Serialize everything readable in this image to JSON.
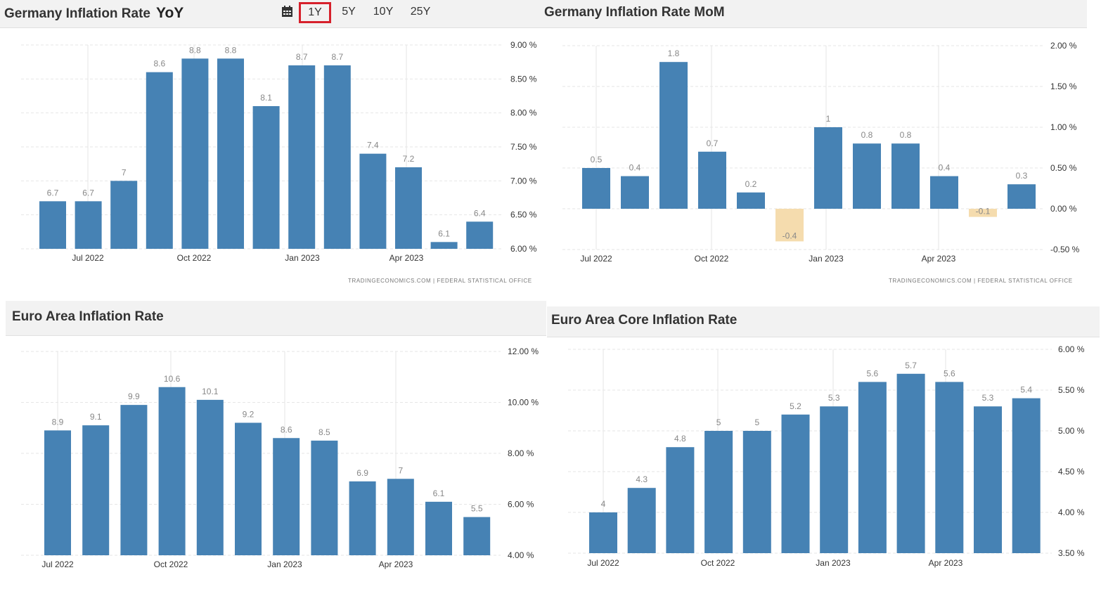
{
  "toolbar": {
    "ranges": [
      "1Y",
      "5Y",
      "10Y",
      "25Y"
    ],
    "active_range": "1Y",
    "calendar_icon": "calendar-icon"
  },
  "colors": {
    "positive": "#4682b4",
    "negative": "#f5dcae",
    "grid": "#e6e6e6"
  },
  "chart_data": [
    {
      "type": "bar",
      "title": "Germany Inflation Rate",
      "title_suffix": "YoY",
      "values": [
        6.7,
        6.7,
        7,
        8.6,
        8.8,
        8.8,
        8.1,
        8.7,
        8.7,
        7.4,
        7.2,
        6.1,
        6.4
      ],
      "value_labels": [
        "6.7",
        "6.7",
        "7",
        "8.6",
        "8.8",
        "8.8",
        "8.1",
        "8.7",
        "8.7",
        "7.4",
        "7.2",
        "6.1",
        "6.4"
      ],
      "x_ticks": [
        "Jul 2022",
        "Oct 2022",
        "Jan 2023",
        "Apr 2023"
      ],
      "ylim": [
        6.0,
        9.0
      ],
      "y_ticks": [
        "6.00 %",
        "6.50 %",
        "7.00 %",
        "7.50 %",
        "8.00 %",
        "8.50 %",
        "9.00 %"
      ],
      "source": "TRADINGECONOMICS.COM  |  FEDERAL  STATISTICAL  OFFICE"
    },
    {
      "type": "bar",
      "title": "Germany Inflation Rate MoM",
      "values": [
        0.5,
        0.4,
        1.8,
        0.7,
        0.2,
        -0.4,
        1,
        0.8,
        0.8,
        0.4,
        -0.1,
        0.3
      ],
      "value_labels": [
        "0.5",
        "0.4",
        "1.8",
        "0.7",
        "0.2",
        "-0.4",
        "1",
        "0.8",
        "0.8",
        "0.4",
        "-0.1",
        "0.3"
      ],
      "x_ticks": [
        "Jul 2022",
        "Oct 2022",
        "Jan 2023",
        "Apr 2023"
      ],
      "ylim": [
        -0.5,
        2.0
      ],
      "y_ticks": [
        "-0.50 %",
        "0.00 %",
        "0.50 %",
        "1.00 %",
        "1.50 %",
        "2.00 %"
      ],
      "source": "TRADINGECONOMICS.COM  |  FEDERAL  STATISTICAL  OFFICE"
    },
    {
      "type": "bar",
      "title": "Euro Area Inflation Rate",
      "values": [
        8.9,
        9.1,
        9.9,
        10.6,
        10.1,
        9.2,
        8.6,
        8.5,
        6.9,
        7,
        6.1,
        5.5
      ],
      "value_labels": [
        "8.9",
        "9.1",
        "9.9",
        "10.6",
        "10.1",
        "9.2",
        "8.6",
        "8.5",
        "6.9",
        "7",
        "6.1",
        "5.5"
      ],
      "x_ticks": [
        "Jul 2022",
        "Oct 2022",
        "Jan 2023",
        "Apr 2023"
      ],
      "ylim": [
        4.0,
        12.0
      ],
      "y_ticks": [
        "4.00 %",
        "6.00 %",
        "8.00 %",
        "10.00 %",
        "12.00 %"
      ]
    },
    {
      "type": "bar",
      "title": "Euro Area Core Inflation Rate",
      "values": [
        4,
        4.3,
        4.8,
        5,
        5,
        5.2,
        5.3,
        5.6,
        5.7,
        5.6,
        5.3,
        5.4
      ],
      "value_labels": [
        "4",
        "4.3",
        "4.8",
        "5",
        "5",
        "5.2",
        "5.3",
        "5.6",
        "5.7",
        "5.6",
        "5.3",
        "5.4"
      ],
      "x_ticks": [
        "Jul 2022",
        "Oct 2022",
        "Jan 2023",
        "Apr 2023"
      ],
      "ylim": [
        3.5,
        6.0
      ],
      "y_ticks": [
        "3.50 %",
        "4.00 %",
        "4.50 %",
        "5.00 %",
        "5.50 %",
        "6.00 %"
      ]
    }
  ]
}
